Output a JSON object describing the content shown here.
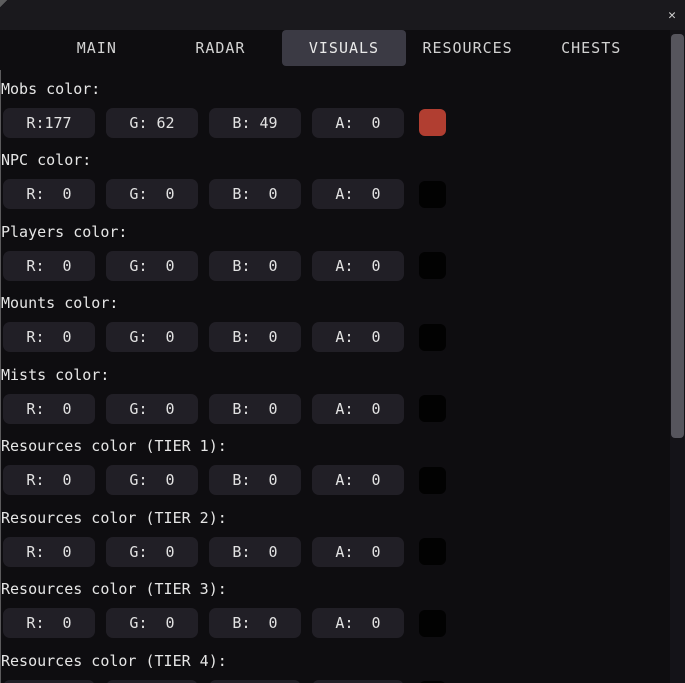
{
  "window": {
    "close_icon": "✕"
  },
  "colors": {
    "background": "#0e0d10",
    "titlebar": "#1a191d",
    "active_tab": "#3b3a44",
    "input_box": "#211f26",
    "scroll_thumb": "#56555d"
  },
  "tabs": [
    {
      "label": "MAIN",
      "active": false
    },
    {
      "label": "RADAR",
      "active": false
    },
    {
      "label": "VISUALS",
      "active": true
    },
    {
      "label": "RESOURCES",
      "active": false
    },
    {
      "label": "CHESTS",
      "active": false
    }
  ],
  "sections": [
    {
      "label": "Mobs color:",
      "r": "R:177",
      "g": "G: 62",
      "b": "B: 49",
      "a": "A:  0",
      "swatch": "#b13e31"
    },
    {
      "label": "NPC color:",
      "r": "R:  0",
      "g": "G:  0",
      "b": "B:  0",
      "a": "A:  0",
      "swatch": "#020202"
    },
    {
      "label": "Players color:",
      "r": "R:  0",
      "g": "G:  0",
      "b": "B:  0",
      "a": "A:  0",
      "swatch": "#020202"
    },
    {
      "label": "Mounts color:",
      "r": "R:  0",
      "g": "G:  0",
      "b": "B:  0",
      "a": "A:  0",
      "swatch": "#020202"
    },
    {
      "label": "Mists color:",
      "r": "R:  0",
      "g": "G:  0",
      "b": "B:  0",
      "a": "A:  0",
      "swatch": "#020202"
    },
    {
      "label": "Resources color (TIER 1):",
      "r": "R:  0",
      "g": "G:  0",
      "b": "B:  0",
      "a": "A:  0",
      "swatch": "#020202"
    },
    {
      "label": "Resources color (TIER 2):",
      "r": "R:  0",
      "g": "G:  0",
      "b": "B:  0",
      "a": "A:  0",
      "swatch": "#020202"
    },
    {
      "label": "Resources color (TIER 3):",
      "r": "R:  0",
      "g": "G:  0",
      "b": "B:  0",
      "a": "A:  0",
      "swatch": "#020202"
    },
    {
      "label": "Resources color (TIER 4):",
      "r": "R:  0",
      "g": "G:  0",
      "b": "B:  0",
      "a": "A:  0",
      "swatch": "#020202"
    }
  ]
}
